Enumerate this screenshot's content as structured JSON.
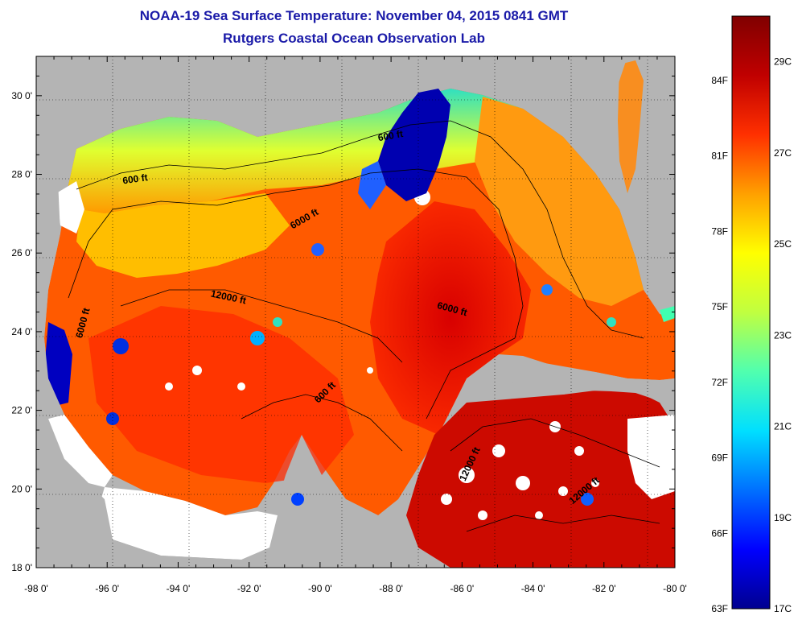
{
  "header": {
    "title": "NOAA-19 Sea Surface Temperature:  November 04, 2015 0841 GMT",
    "subtitle": "Rutgers Coastal Ocean Observation Lab"
  },
  "map": {
    "lon_range": [
      -98,
      -80
    ],
    "lat_range": [
      18,
      31
    ],
    "lon_ticks": [
      "-98 0'",
      "-96 0'",
      "-94 0'",
      "-92 0'",
      "-90 0'",
      "-88 0'",
      "-86 0'",
      "-84 0'",
      "-82 0'",
      "-80 0'"
    ],
    "lat_ticks": [
      "18 0'",
      "20 0'",
      "22 0'",
      "24 0'",
      "26 0'",
      "28 0'",
      "30 0'"
    ],
    "contour_labels": [
      {
        "text": "600 ft",
        "lon": -95.2,
        "lat": 27.8,
        "angle": -8
      },
      {
        "text": "600 ft",
        "lon": -88.0,
        "lat": 28.9,
        "angle": -10
      },
      {
        "text": "6000 ft",
        "lon": -90.4,
        "lat": 26.8,
        "angle": -30
      },
      {
        "text": "12000 ft",
        "lon": -92.6,
        "lat": 24.8,
        "angle": 12
      },
      {
        "text": "6000 ft",
        "lon": -96.6,
        "lat": 24.2,
        "angle": -75
      },
      {
        "text": "6000 ft",
        "lon": -86.3,
        "lat": 24.5,
        "angle": 15
      },
      {
        "text": "600 ft",
        "lon": -89.8,
        "lat": 22.4,
        "angle": -45
      },
      {
        "text": "12000 ft",
        "lon": -85.7,
        "lat": 20.6,
        "angle": -65
      },
      {
        "text": "12000 ft",
        "lon": -82.5,
        "lat": 19.9,
        "angle": -40
      }
    ],
    "colors": {
      "land": "#b4b4b4",
      "cloud": "#ffffff"
    }
  },
  "colorbar": {
    "fahrenheit_labels": [
      "84F",
      "81F",
      "78F",
      "75F",
      "72F",
      "69F",
      "66F",
      "63F"
    ],
    "celsius_labels": [
      "29C",
      "27C",
      "25C",
      "23C",
      "21C",
      "19C",
      "17C"
    ],
    "range_celsius": [
      17,
      30
    ],
    "colors": [
      "#00008f",
      "#0000ff",
      "#0070ff",
      "#00dfff",
      "#50ffaf",
      "#c0ff40",
      "#ffff00",
      "#ffa000",
      "#ff3000",
      "#c00000",
      "#800000"
    ]
  }
}
